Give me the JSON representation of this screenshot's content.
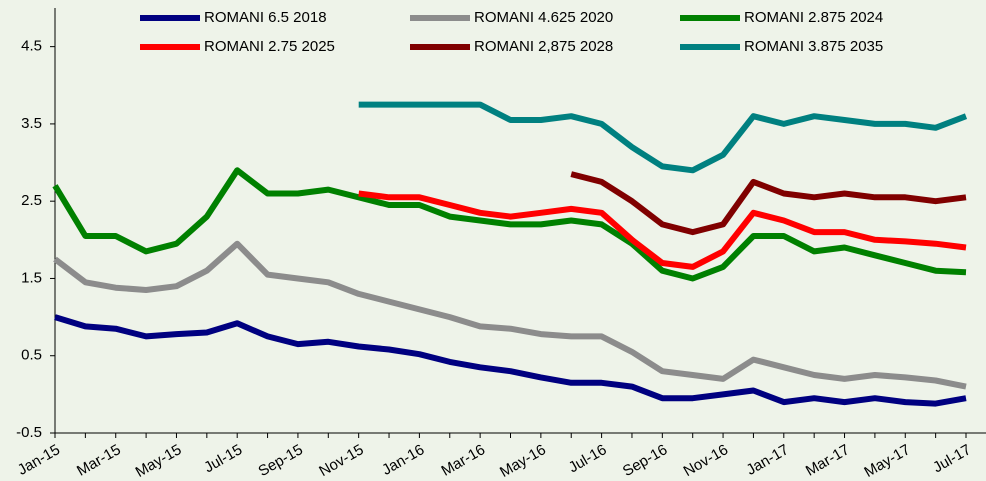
{
  "chart_data": {
    "type": "line",
    "categories": [
      "Jan-15",
      null,
      "Mar-15",
      null,
      "May-15",
      null,
      "Jul-15",
      null,
      "Sep-15",
      null,
      "Nov-15",
      null,
      "Jan-16",
      null,
      "Mar-16",
      null,
      "May-16",
      null,
      "Jul-16",
      null,
      "Sep-16",
      null,
      "Nov-16",
      null,
      "Jan-17",
      null,
      "Mar-17",
      null,
      "May-17",
      null,
      "Jul-17"
    ],
    "series": [
      {
        "name": "ROMANI 6.5  2018",
        "color": "#000080",
        "values": [
          1.0,
          0.88,
          0.85,
          0.75,
          0.78,
          0.8,
          0.92,
          0.75,
          0.65,
          0.68,
          0.62,
          0.58,
          0.52,
          0.42,
          0.35,
          0.3,
          0.22,
          0.15,
          0.15,
          0.1,
          -0.05,
          -0.05,
          0.0,
          0.05,
          -0.1,
          -0.05,
          -0.1,
          -0.05,
          -0.1,
          -0.12,
          -0.05
        ]
      },
      {
        "name": "ROMANI 4.625  2020",
        "color": "#8c8c8c",
        "values": [
          1.75,
          1.45,
          1.38,
          1.35,
          1.4,
          1.6,
          1.95,
          1.55,
          1.5,
          1.45,
          1.3,
          1.2,
          1.1,
          1.0,
          0.88,
          0.85,
          0.78,
          0.75,
          0.75,
          0.55,
          0.3,
          0.25,
          0.2,
          0.45,
          0.35,
          0.25,
          0.2,
          0.25,
          0.22,
          0.18,
          0.1
        ]
      },
      {
        "name": "ROMANI 2.875  2024",
        "color": "#008000",
        "values": [
          2.7,
          2.05,
          2.05,
          1.85,
          1.95,
          2.3,
          2.9,
          2.6,
          2.6,
          2.65,
          2.55,
          2.45,
          2.45,
          2.3,
          2.25,
          2.2,
          2.2,
          2.25,
          2.2,
          1.95,
          1.6,
          1.5,
          1.65,
          2.05,
          2.05,
          1.85,
          1.9,
          1.8,
          1.7,
          1.6,
          1.58
        ]
      },
      {
        "name": "ROMANI 2.75 2025",
        "color": "#ff0000",
        "values": [
          null,
          null,
          null,
          null,
          null,
          null,
          null,
          null,
          null,
          null,
          2.6,
          2.55,
          2.55,
          2.45,
          2.35,
          2.3,
          2.35,
          2.4,
          2.35,
          2.0,
          1.7,
          1.65,
          1.85,
          2.35,
          2.25,
          2.1,
          2.1,
          2.0,
          1.98,
          1.95,
          1.9
        ]
      },
      {
        "name": "ROMANI 2,875 2028",
        "color": "#800000",
        "values": [
          null,
          null,
          null,
          null,
          null,
          null,
          null,
          null,
          null,
          null,
          null,
          null,
          null,
          null,
          null,
          null,
          null,
          2.85,
          2.75,
          2.5,
          2.2,
          2.1,
          2.2,
          2.75,
          2.6,
          2.55,
          2.6,
          2.55,
          2.55,
          2.5,
          2.55
        ]
      },
      {
        "name": "ROMANI 3.875 2035",
        "color": "#008080",
        "values": [
          null,
          null,
          null,
          null,
          null,
          null,
          null,
          null,
          null,
          null,
          3.75,
          3.75,
          3.75,
          3.75,
          3.75,
          3.55,
          3.55,
          3.6,
          3.5,
          3.2,
          2.95,
          2.9,
          3.1,
          3.6,
          3.5,
          3.6,
          3.55,
          3.5,
          3.5,
          3.45,
          3.6
        ]
      }
    ],
    "ylim": [
      -0.5,
      5.0
    ],
    "yticks": [
      -0.5,
      0.5,
      1.5,
      2.5,
      3.5,
      4.5
    ],
    "legend": "top"
  }
}
